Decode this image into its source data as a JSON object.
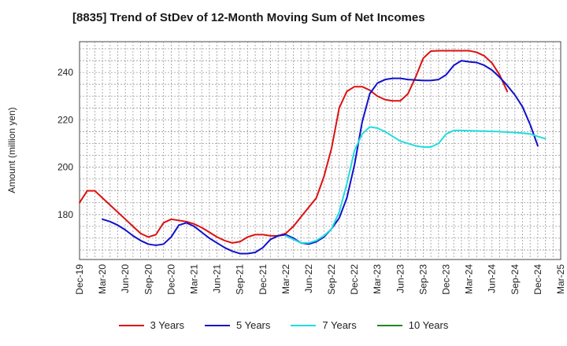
{
  "title": "[8835]  Trend of StDev of 12-Month Moving Sum of Net Incomes",
  "chart_data": {
    "type": "line",
    "title": "[8835]  Trend of StDev of 12-Month Moving Sum of Net Incomes",
    "ylabel": "Amount (million yen)",
    "xlabel": "",
    "ylim": [
      161,
      253
    ],
    "yticks": [
      180,
      200,
      220,
      240
    ],
    "grid": true,
    "legend_position": "bottom",
    "x_tick_labels": [
      "Dec-19",
      "Mar-20",
      "Jun-20",
      "Sep-20",
      "Dec-20",
      "Mar-21",
      "Jun-21",
      "Sep-21",
      "Dec-21",
      "Mar-22",
      "Jun-22",
      "Sep-22",
      "Dec-22",
      "Mar-23",
      "Jun-23",
      "Sep-23",
      "Dec-23",
      "Mar-24",
      "Jun-24",
      "Sep-24",
      "Dec-24",
      "Mar-25"
    ],
    "x_months": [
      "2019-12",
      "2020-01",
      "2020-02",
      "2020-03",
      "2020-04",
      "2020-05",
      "2020-06",
      "2020-07",
      "2020-08",
      "2020-09",
      "2020-10",
      "2020-11",
      "2020-12",
      "2021-01",
      "2021-02",
      "2021-03",
      "2021-04",
      "2021-05",
      "2021-06",
      "2021-07",
      "2021-08",
      "2021-09",
      "2021-10",
      "2021-11",
      "2021-12",
      "2022-01",
      "2022-02",
      "2022-03",
      "2022-04",
      "2022-05",
      "2022-06",
      "2022-07",
      "2022-08",
      "2022-09",
      "2022-10",
      "2022-11",
      "2022-12",
      "2023-01",
      "2023-02",
      "2023-03",
      "2023-04",
      "2023-05",
      "2023-06",
      "2023-07",
      "2023-08",
      "2023-09",
      "2023-10",
      "2023-11",
      "2023-12",
      "2024-01",
      "2024-02",
      "2024-03",
      "2024-04",
      "2024-05",
      "2024-06",
      "2024-07",
      "2024-08",
      "2024-09",
      "2024-10",
      "2024-11",
      "2024-12",
      "2025-01",
      "2025-02",
      "2025-03"
    ],
    "series": [
      {
        "name": "3 Years",
        "color": "#dd1111",
        "start_index": 0,
        "values": [
          185,
          190,
          190,
          187,
          184,
          181,
          178,
          175,
          172,
          170.5,
          171.5,
          176.5,
          178,
          177.5,
          177,
          176,
          174.5,
          172.5,
          170.5,
          169,
          168,
          168.5,
          170.5,
          171.5,
          171.5,
          171,
          171,
          172,
          175,
          179,
          183,
          187,
          196,
          208,
          225,
          232,
          234,
          234,
          232.5,
          230,
          228.5,
          228,
          228,
          231,
          238,
          246,
          249,
          249.2,
          249.2,
          249.2,
          249.2,
          249.2,
          248.5,
          247,
          244,
          239,
          232
        ]
      },
      {
        "name": "5 Years",
        "color": "#1111cc",
        "start_index": 3,
        "values": [
          178,
          177,
          175.5,
          173.5,
          171,
          169,
          167.5,
          167,
          167.5,
          170.5,
          175.5,
          176.5,
          175,
          172.5,
          170,
          168,
          166,
          164.5,
          163.5,
          163.5,
          164,
          166,
          169.5,
          171,
          171.5,
          170,
          168,
          167.5,
          168.5,
          170.5,
          174,
          178.5,
          187,
          201,
          219,
          231,
          235.5,
          237,
          237.5,
          237.5,
          237,
          236.8,
          236.6,
          236.6,
          237,
          239,
          243,
          245,
          244.5,
          244.2,
          243,
          241,
          238,
          234.5,
          230.5,
          225.5,
          218,
          209
        ]
      },
      {
        "name": "7 Years",
        "color": "#22dddd",
        "start_index": 27,
        "values": [
          171,
          169.5,
          168,
          168,
          169,
          171,
          174,
          181,
          193,
          207,
          214,
          217,
          216.5,
          215,
          213,
          211,
          210,
          209,
          208.5,
          208.5,
          210,
          214,
          215.5,
          215.5,
          215.4,
          215.3,
          215.2,
          215.1,
          215,
          214.8,
          214.6,
          214.4,
          214,
          213,
          212
        ]
      },
      {
        "name": "10 Years",
        "color": "#228822",
        "start_index": 0,
        "values": []
      }
    ]
  }
}
